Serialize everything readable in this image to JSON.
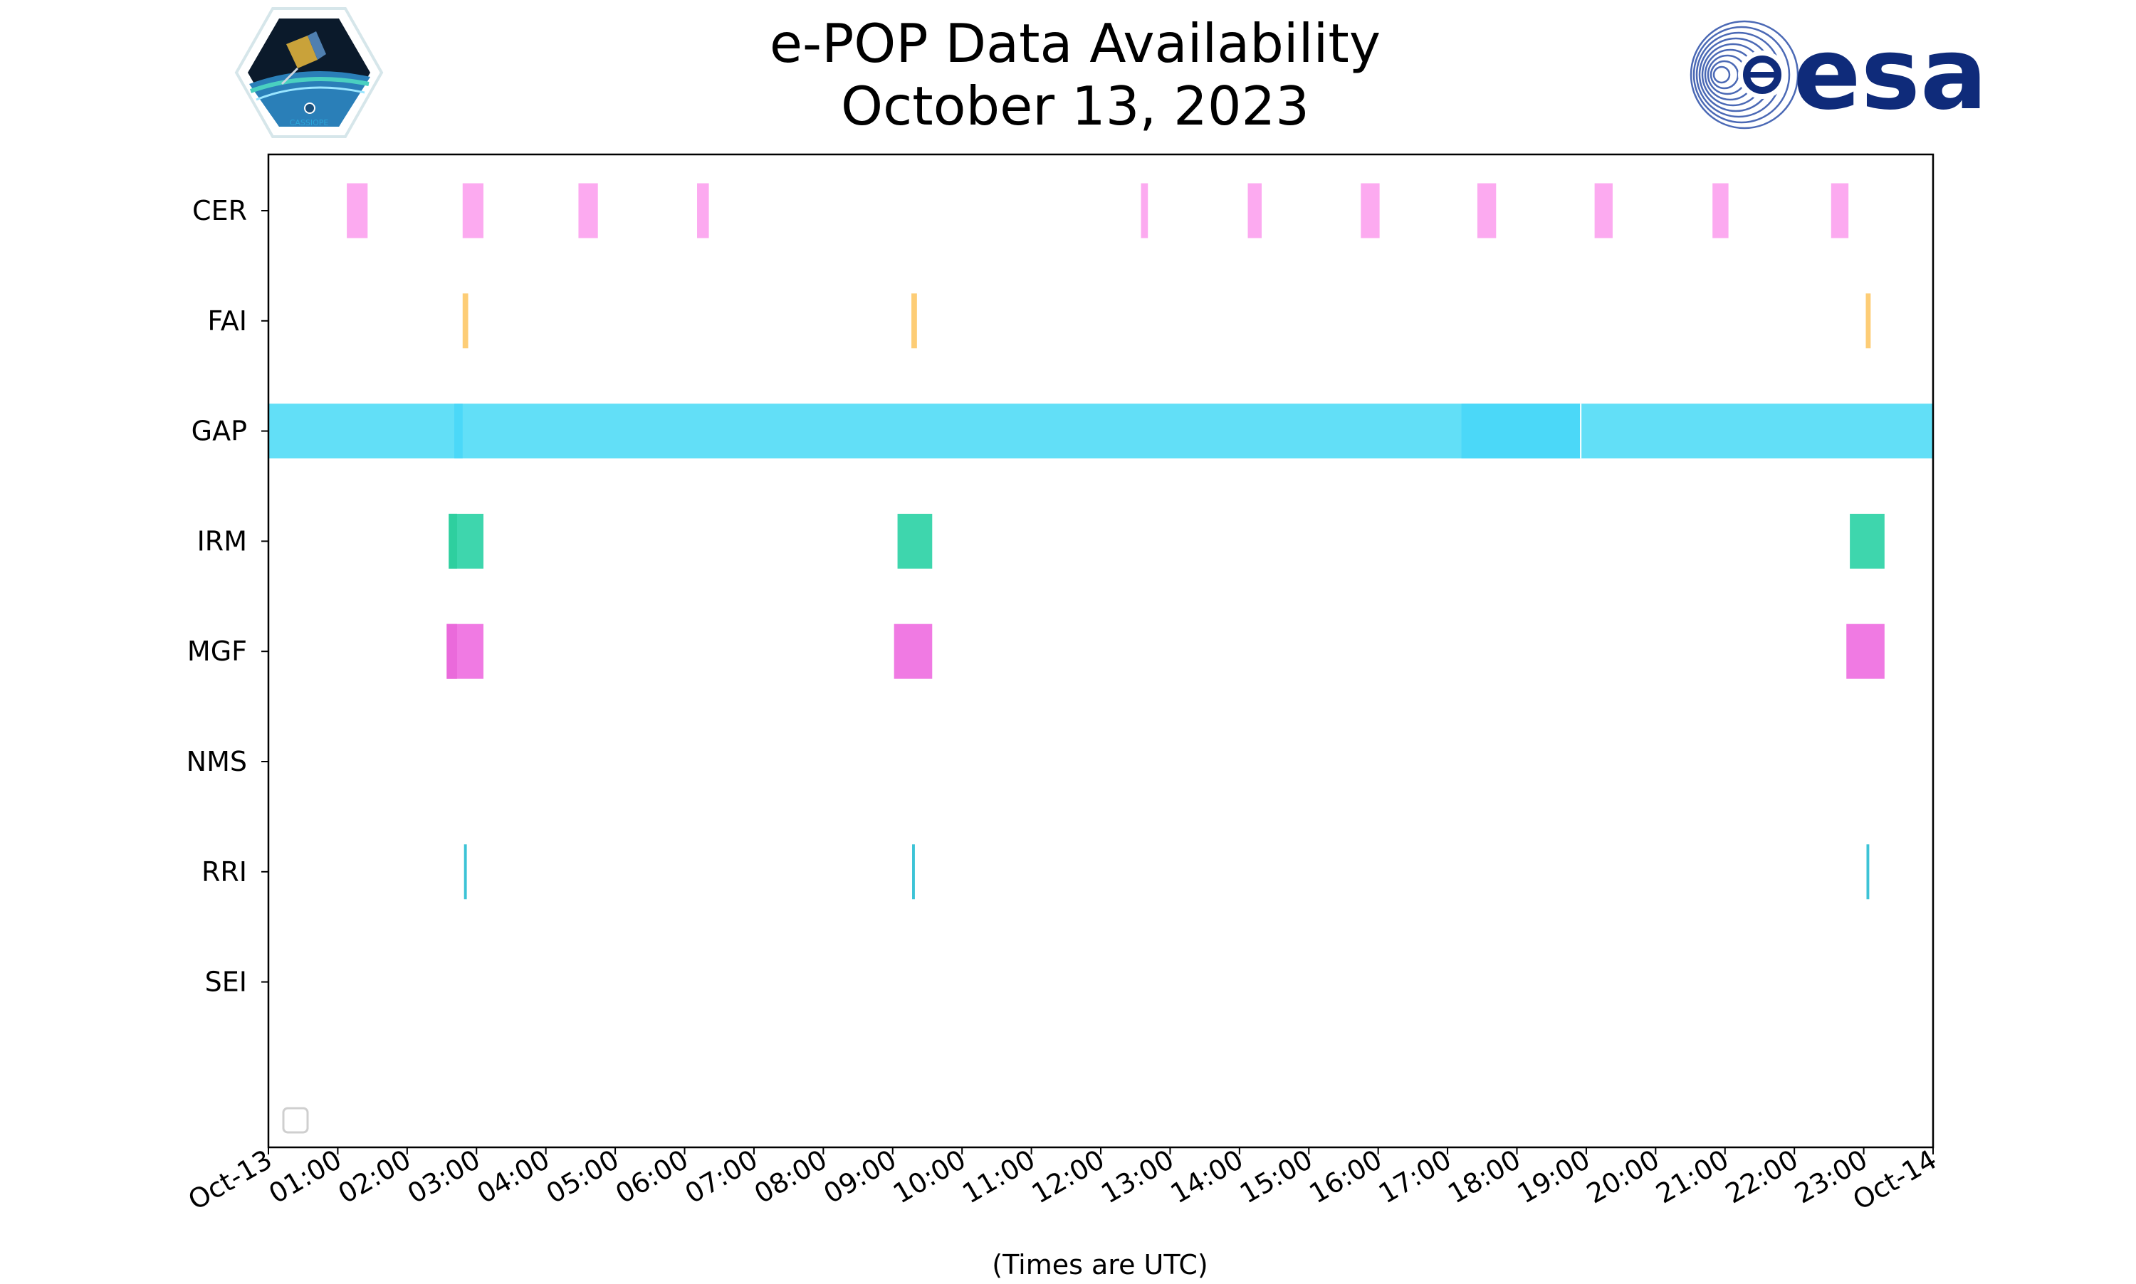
{
  "chart_data": {
    "type": "timeline",
    "title_line1": "e-POP Data Availability",
    "title_line2": "October 13, 2023",
    "xlabel": "(Times are UTC)",
    "xlim_hours": [
      0,
      24
    ],
    "x_tick_labels": [
      "Oct-13",
      "01:00",
      "02:00",
      "03:00",
      "04:00",
      "05:00",
      "06:00",
      "07:00",
      "08:00",
      "09:00",
      "10:00",
      "11:00",
      "12:00",
      "13:00",
      "14:00",
      "15:00",
      "16:00",
      "17:00",
      "18:00",
      "19:00",
      "20:00",
      "21:00",
      "22:00",
      "23:00",
      "Oct-14"
    ],
    "instruments": [
      "CER",
      "FAI",
      "GAP",
      "IRM",
      "MGF",
      "NMS",
      "RRI",
      "SEI"
    ],
    "legend": "empty box, lower-left",
    "logos": {
      "left": "CASSIOPE",
      "right": "esa"
    },
    "series": [
      {
        "name": "CER",
        "color": "#fcaaf0",
        "intervals": [
          [
            1.13,
            1.43
          ],
          [
            2.8,
            3.1
          ],
          [
            4.47,
            4.75
          ],
          [
            6.18,
            6.35
          ],
          [
            12.58,
            12.68
          ],
          [
            14.12,
            14.32
          ],
          [
            15.75,
            16.02
          ],
          [
            17.43,
            17.7
          ],
          [
            19.12,
            19.38
          ],
          [
            20.82,
            21.05
          ],
          [
            22.53,
            22.78
          ]
        ]
      },
      {
        "name": "FAI",
        "color": "#fdcd76",
        "intervals": [
          [
            2.8,
            2.88
          ],
          [
            9.27,
            9.35
          ],
          [
            23.03,
            23.1
          ]
        ]
      },
      {
        "name": "GAP",
        "color": "#62dff7",
        "intervals": [
          [
            0,
            24
          ]
        ],
        "overlaps": [
          [
            2.68,
            2.8
          ],
          [
            17.2,
            18.92
          ]
        ],
        "overlap_color": "#4bd8f8"
      },
      {
        "name": "IRM",
        "color": "#3ed6ad",
        "intervals": [
          [
            2.6,
            3.1
          ],
          [
            9.07,
            9.57
          ],
          [
            22.8,
            23.3
          ]
        ],
        "overlaps": [
          [
            2.6,
            2.72
          ]
        ],
        "overlap_color": "#2ecf9f"
      },
      {
        "name": "MGF",
        "color": "#f07ae3",
        "intervals": [
          [
            2.57,
            3.1
          ],
          [
            9.02,
            9.57
          ],
          [
            22.75,
            23.3
          ]
        ],
        "overlaps": [
          [
            2.57,
            2.72
          ]
        ],
        "overlap_color": "#ea6adb"
      },
      {
        "name": "NMS",
        "color": "#cccccc",
        "intervals": []
      },
      {
        "name": "RRI",
        "color": "#3cc3d6",
        "intervals": [
          [
            2.82,
            2.86
          ],
          [
            9.28,
            9.32
          ],
          [
            23.04,
            23.08
          ]
        ]
      },
      {
        "name": "SEI",
        "color": "#cccccc",
        "intervals": []
      }
    ]
  }
}
